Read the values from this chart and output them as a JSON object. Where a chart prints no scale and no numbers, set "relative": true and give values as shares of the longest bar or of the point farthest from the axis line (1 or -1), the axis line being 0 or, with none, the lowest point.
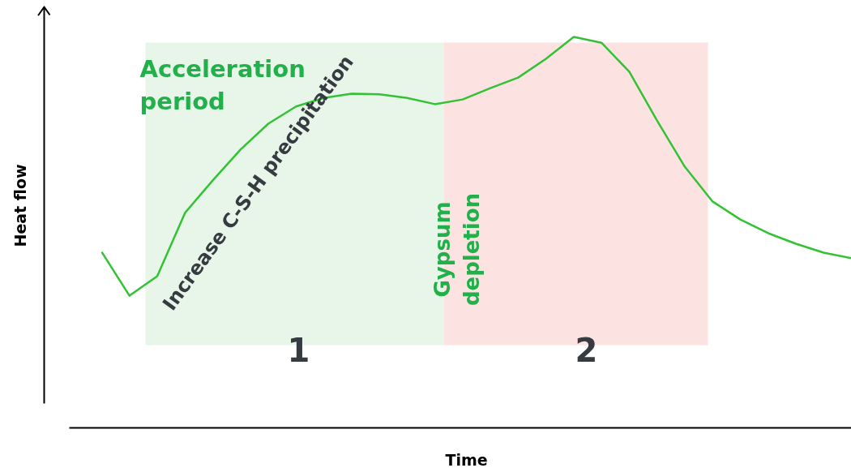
{
  "chart_data": {
    "type": "line",
    "relative": true,
    "xlabel": "Time",
    "ylabel": "Heat flow",
    "categories": [
      null,
      null,
      null,
      null,
      null,
      null,
      null,
      null,
      null,
      null,
      null,
      null,
      null,
      null,
      null,
      null,
      null,
      null,
      null,
      null,
      null,
      null,
      null,
      null,
      null,
      null,
      null,
      null
    ],
    "series": [
      {
        "color": "#33c233",
        "values": [
          0.45,
          0.338,
          0.388,
          0.55,
          0.633,
          0.712,
          0.778,
          0.822,
          0.844,
          0.855,
          0.853,
          0.844,
          0.828,
          0.84,
          0.869,
          0.896,
          0.944,
          1.0,
          0.985,
          0.911,
          0.786,
          0.668,
          0.579,
          0.533,
          0.498,
          0.471,
          0.448,
          0.434
        ]
      }
    ],
    "annotations": [
      "Acceleration\nperiod",
      "Increase C-S-H precipitation",
      "Gypsum\ndepletion",
      "1",
      "2"
    ],
    "grid": false,
    "marker": "none",
    "line_style": "solid"
  }
}
